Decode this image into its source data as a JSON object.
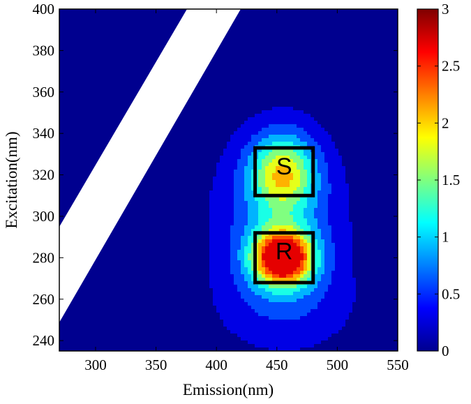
{
  "chart_data": {
    "type": "heatmap",
    "subtype": "filled-contour",
    "title": "",
    "xlabel": "Emission(nm)",
    "ylabel": "Excitation(nm)",
    "xlim": [
      270,
      550
    ],
    "ylim": [
      235,
      400
    ],
    "x_ticks": [
      "300",
      "350",
      "400",
      "450",
      "500",
      "550"
    ],
    "y_ticks": [
      "240",
      "260",
      "280",
      "300",
      "320",
      "340",
      "360",
      "380",
      "400"
    ],
    "colorbar": {
      "range": [
        0,
        3
      ],
      "ticks": [
        "0",
        "0.5",
        "1",
        "1.5",
        "2",
        "2.5",
        "3"
      ],
      "colormap": "jet"
    },
    "contour_levels": [
      0,
      0.3,
      0.6,
      0.9,
      1.2,
      1.5,
      1.8,
      2.1,
      2.4,
      2.7
    ],
    "peaks": [
      {
        "emission": 455,
        "excitation": 280,
        "intensity": 3.0
      },
      {
        "emission": 455,
        "excitation": 321,
        "intensity": 1.5
      }
    ],
    "annotations": [
      {
        "label": "S",
        "emission_range": [
          432,
          480
        ],
        "excitation_range": [
          310,
          333
        ]
      },
      {
        "label": "R",
        "emission_range": [
          432,
          480
        ],
        "excitation_range": [
          268,
          292
        ]
      }
    ],
    "masked_band": {
      "color": "#ffffff",
      "description_none": ""
    }
  }
}
